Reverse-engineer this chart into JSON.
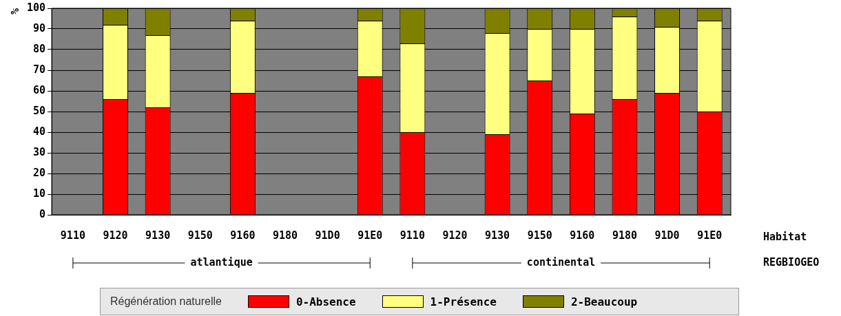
{
  "chart_data": {
    "type": "bar",
    "stacked": true,
    "ylabel": "%",
    "legend_title": "Régénération naturelle",
    "categories": [
      "9110",
      "9120",
      "9130",
      "9150",
      "9160",
      "9180",
      "91D0",
      "91E0",
      "9110",
      "9120",
      "9130",
      "9150",
      "9160",
      "9180",
      "91D0",
      "91E0"
    ],
    "series": [
      {
        "name": "0-Absence",
        "color": "#ff0000",
        "values": [
          null,
          56,
          52,
          null,
          59,
          null,
          null,
          67,
          40,
          null,
          39,
          65,
          49,
          56,
          59,
          50
        ]
      },
      {
        "name": "1-Présence",
        "color": "#ffff80",
        "values": [
          null,
          36,
          35,
          null,
          35,
          null,
          null,
          27,
          43,
          null,
          49,
          25,
          41,
          40,
          32,
          44
        ]
      },
      {
        "name": "2-Beaucoup",
        "color": "#808000",
        "values": [
          null,
          8,
          13,
          null,
          6,
          null,
          null,
          6,
          17,
          null,
          12,
          10,
          10,
          4,
          9,
          6
        ]
      }
    ],
    "ylim": [
      0,
      100
    ],
    "yticks": [
      0,
      10,
      20,
      30,
      40,
      50,
      60,
      70,
      80,
      90,
      100
    ],
    "grid": "y",
    "legend": "bottom",
    "annotations": [
      "atlantique",
      "continental",
      "Habitat",
      "REGBIOGEO"
    ]
  }
}
